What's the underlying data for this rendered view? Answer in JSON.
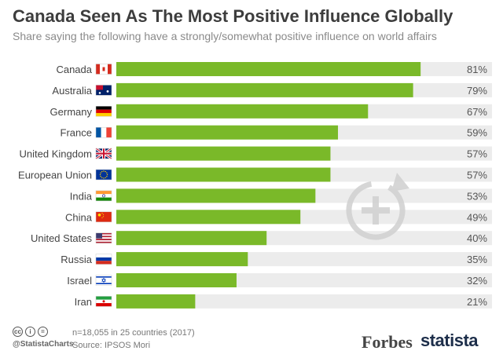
{
  "header": {
    "title": "Canada Seen As The Most Positive Influence Globally",
    "subtitle": "Share saying the following have a strongly/somewhat positive influence on world affairs"
  },
  "chart_data": {
    "type": "bar",
    "orientation": "horizontal",
    "title": "Canada Seen As The Most Positive Influence Globally",
    "subtitle": "Share saying the following have a strongly/somewhat positive influence on world affairs",
    "categories": [
      "Canada",
      "Australia",
      "Germany",
      "France",
      "United Kingdom",
      "European Union",
      "India",
      "China",
      "United States",
      "Russia",
      "Israel",
      "Iran"
    ],
    "values": [
      81,
      79,
      67,
      59,
      57,
      57,
      53,
      49,
      40,
      35,
      32,
      21
    ],
    "value_labels": [
      "81%",
      "79%",
      "67%",
      "59%",
      "57%",
      "57%",
      "53%",
      "49%",
      "40%",
      "35%",
      "32%",
      "21%"
    ],
    "xlim": [
      0,
      100
    ],
    "unit": "%",
    "bar_color": "#7ab929",
    "track_color": "#ececec",
    "grid": false,
    "legend": "none"
  },
  "footer": {
    "license_icons": [
      "cc",
      "i",
      "="
    ],
    "handle": "@StatistaCharts",
    "note": "n=18,055 in 25 countries (2017)",
    "source": "Source: IPSOS Mori",
    "forbes": "Forbes",
    "statista": "statista"
  }
}
